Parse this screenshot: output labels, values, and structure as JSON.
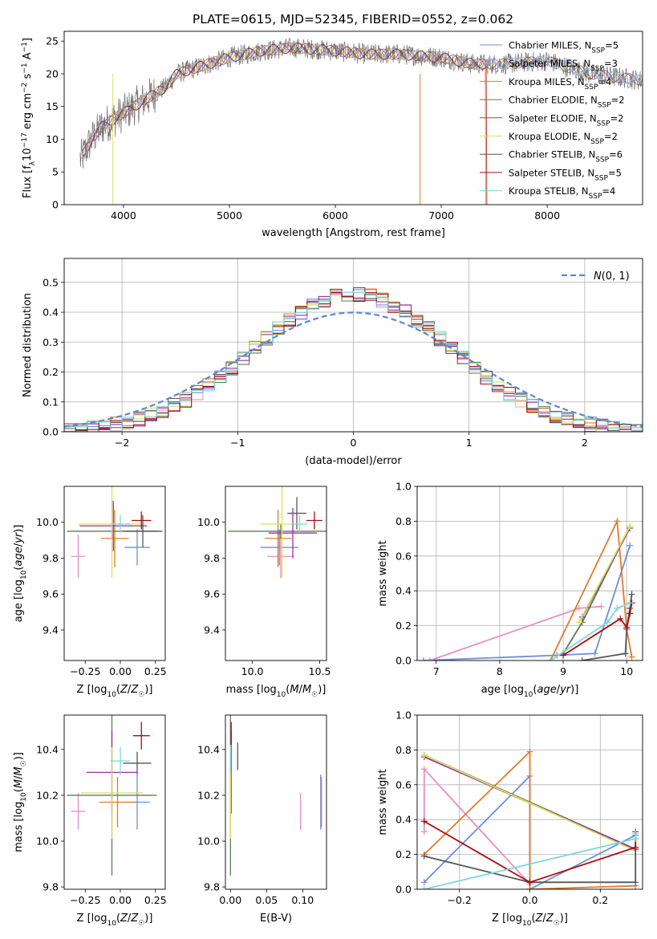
{
  "figure": {
    "title": "PLATE=0615, MJD=52345, FIBERID=0552, z=0.062"
  },
  "series_colors": [
    "#6c8fd8",
    "#e68fbf",
    "#e07b28",
    "#5f7a5a",
    "#9c2fa8",
    "#d7e35a",
    "#555555",
    "#a80d0d",
    "#7fd6dd"
  ],
  "chart_data": [
    {
      "id": "spectrum",
      "type": "line",
      "title": "PLATE=0615, MJD=52345, FIBERID=0552, z=0.062",
      "xlabel": "wavelength [Angstrom, rest frame]",
      "ylabel": "Flux [f_λ10^-17 erg cm^-2 s^-1 A^-1]",
      "xlim": [
        3440,
        8900
      ],
      "ylim": [
        0,
        26.5
      ],
      "xticks": [
        4000,
        5000,
        6000,
        7000,
        8000
      ],
      "yticks": [
        0,
        5,
        10,
        15,
        20,
        25
      ],
      "legend_position": "top-right",
      "legend": [
        "Chabrier MILES, N_SSP=5",
        "Salpeter MILES, N_SSP=3",
        "Kroupa MILES, N_SSP=4",
        "Chabrier ELODIE, N_SSP=2",
        "Salpeter ELODIE, N_SSP=2",
        "Kroupa ELODIE, N_SSP=2",
        "Chabrier STELIB, N_SSP=6",
        "Salpeter STELIB, N_SSP=5",
        "Kroupa STELIB, N_SSP=4"
      ],
      "continuum": {
        "x": [
          3600,
          3700,
          3800,
          3900,
          4000,
          4100,
          4200,
          4300,
          4400,
          4500,
          4700,
          5000,
          5300,
          5600,
          6000,
          6300,
          6600,
          7000,
          7300,
          7600,
          8000,
          8400,
          8900
        ],
        "y": [
          7,
          10,
          12,
          13,
          14,
          15,
          16,
          17,
          18,
          20,
          21,
          22.5,
          23.5,
          24,
          23.5,
          23,
          23,
          22.5,
          21.5,
          21.5,
          22,
          20,
          19
        ]
      }
    },
    {
      "id": "residuals",
      "type": "histogram",
      "xlabel": "(data-model)/error",
      "ylabel": "Normed distribution",
      "xlim": [
        -2.5,
        2.5
      ],
      "ylim": [
        0,
        0.58
      ],
      "xticks": [
        -2,
        -1,
        0,
        1,
        2
      ],
      "yticks": [
        0.0,
        0.1,
        0.2,
        0.3,
        0.4,
        0.5
      ],
      "grid": true,
      "legend_position": "top-right",
      "legend": [
        "N(0,1)"
      ],
      "bin_width": 0.1,
      "envelope_peak": 0.46
    },
    {
      "id": "age-vs-Z",
      "type": "errorbar",
      "xlabel": "Z [log10(Z/Z☉)]",
      "ylabel": "age  [log10(age/yr)]",
      "xlim": [
        -0.4,
        0.32
      ],
      "ylim": [
        9.23,
        10.2
      ],
      "xticks": [
        -0.25,
        0.0,
        0.25
      ],
      "yticks": [
        9.4,
        9.6,
        9.8,
        10.0
      ],
      "points": [
        {
          "x": 0.12,
          "y": 9.86,
          "xerr": 0.09,
          "yerr": 0.1
        },
        {
          "x": -0.3,
          "y": 9.81,
          "xerr": 0.05,
          "yerr": 0.12
        },
        {
          "x": -0.04,
          "y": 9.91,
          "xerr": 0.1,
          "yerr": 0.16
        },
        {
          "x": -0.06,
          "y": 9.95,
          "xerr": 0.32,
          "yerr": 0.04
        },
        {
          "x": -0.05,
          "y": 9.98,
          "xerr": 0.24,
          "yerr": 0.14
        },
        {
          "x": -0.06,
          "y": 9.99,
          "xerr": 0.24,
          "yerr": 0.3
        },
        {
          "x": 0.16,
          "y": 9.95,
          "xerr": 0.14,
          "yerr": 0.09
        },
        {
          "x": 0.15,
          "y": 10.01,
          "xerr": 0.07,
          "yerr": 0.05
        },
        {
          "x": 0.0,
          "y": 9.99,
          "xerr": 0.07,
          "yerr": 0.05
        }
      ]
    },
    {
      "id": "age-vs-mass",
      "type": "errorbar",
      "xlabel": "mass [log10(M/M☉)]",
      "ylabel": "",
      "xlim": [
        9.8,
        10.55
      ],
      "ylim": [
        9.23,
        10.2
      ],
      "xticks": [
        10.0,
        10.5
      ],
      "yticks": [
        9.4,
        9.6,
        9.8,
        10.0
      ],
      "points": [
        {
          "x": 10.2,
          "y": 9.86,
          "xerr": 0.14,
          "yerr": 0.1
        },
        {
          "x": 10.21,
          "y": 9.81,
          "xerr": 0.1,
          "yerr": 0.12
        },
        {
          "x": 10.19,
          "y": 9.91,
          "xerr": 0.1,
          "yerr": 0.16
        },
        {
          "x": 10.21,
          "y": 9.95,
          "xerr": 0.39,
          "yerr": 0.04
        },
        {
          "x": 10.3,
          "y": 9.94,
          "xerr": 0.18,
          "yerr": 0.14
        },
        {
          "x": 10.22,
          "y": 9.99,
          "xerr": 0.16,
          "yerr": 0.3
        },
        {
          "x": 10.33,
          "y": 10.05,
          "xerr": 0.07,
          "yerr": 0.09
        },
        {
          "x": 10.46,
          "y": 10.01,
          "xerr": 0.06,
          "yerr": 0.05
        },
        {
          "x": 10.35,
          "y": 9.99,
          "xerr": 0.06,
          "yerr": 0.05
        }
      ]
    },
    {
      "id": "weight-vs-age",
      "type": "line",
      "xlabel": "age  [log10(age/yr)]",
      "ylabel": "mass weight",
      "xlim": [
        6.7,
        10.25
      ],
      "ylim": [
        0.0,
        1.0
      ],
      "xticks": [
        7,
        8,
        9,
        10
      ],
      "yticks": [
        0.0,
        0.2,
        0.4,
        0.6,
        0.8,
        1.0
      ],
      "grid": true,
      "series": [
        {
          "x": [
            6.8,
            8.9,
            9.5,
            10.05
          ],
          "y": [
            0.0,
            0.03,
            0.04,
            0.66
          ]
        },
        {
          "x": [
            6.9,
            9.25,
            9.6
          ],
          "y": [
            0.0,
            0.3,
            0.31
          ]
        },
        {
          "x": [
            8.8,
            9.85,
            10.0,
            10.08
          ],
          "y": [
            0.0,
            0.8,
            0.18,
            0.02
          ]
        },
        {
          "x": [
            9.0,
            9.3,
            10.05
          ],
          "y": [
            0.04,
            0.22,
            0.77
          ]
        },
        {
          "x": [
            9.3,
            10.05
          ],
          "y": [
            0.25,
            0.76
          ]
        },
        {
          "x": [
            9.25,
            10.05
          ],
          "y": [
            0.22,
            0.77
          ]
        },
        {
          "x": [
            9.3,
            9.98,
            10.0,
            10.05,
            10.08
          ],
          "y": [
            0.0,
            0.04,
            0.18,
            0.3,
            0.38
          ]
        },
        {
          "x": [
            9.0,
            9.9,
            10.0,
            10.05,
            10.08
          ],
          "y": [
            0.03,
            0.24,
            0.19,
            0.27,
            0.33
          ]
        },
        {
          "x": [
            8.8,
            9.7,
            9.85,
            10.05
          ],
          "y": [
            0.0,
            0.22,
            0.3,
            0.33
          ]
        }
      ]
    },
    {
      "id": "mass-vs-Z",
      "type": "errorbar",
      "xlabel": "Z [log10(Z/Z☉)]",
      "ylabel": "mass [log10(M/M☉)]",
      "xlim": [
        -0.4,
        0.32
      ],
      "ylim": [
        9.79,
        10.55
      ],
      "xticks": [
        -0.25,
        0.0,
        0.25
      ],
      "yticks": [
        9.8,
        10.0,
        10.2,
        10.4
      ],
      "points": [
        {
          "x": 0.12,
          "y": 10.17,
          "xerr": 0.09,
          "yerr": 0.12
        },
        {
          "x": -0.3,
          "y": 10.13,
          "xerr": 0.05,
          "yerr": 0.08
        },
        {
          "x": -0.02,
          "y": 10.17,
          "xerr": 0.13,
          "yerr": 0.11
        },
        {
          "x": -0.06,
          "y": 10.2,
          "xerr": 0.32,
          "yerr": 0.35
        },
        {
          "x": -0.06,
          "y": 10.3,
          "xerr": 0.18,
          "yerr": 0.18
        },
        {
          "x": -0.06,
          "y": 10.21,
          "xerr": 0.22,
          "yerr": 0.2
        },
        {
          "x": 0.12,
          "y": 10.34,
          "xerr": 0.1,
          "yerr": 0.05
        },
        {
          "x": 0.15,
          "y": 10.46,
          "xerr": 0.06,
          "yerr": 0.06
        },
        {
          "x": 0.0,
          "y": 10.35,
          "xerr": 0.07,
          "yerr": 0.06
        }
      ]
    },
    {
      "id": "mass-vs-EBV",
      "type": "errorbar",
      "xlabel": "E(B-V)",
      "ylabel": "",
      "xlim": [
        -0.007,
        0.133
      ],
      "ylim": [
        9.79,
        10.55
      ],
      "xticks": [
        0.0,
        0.05,
        0.1
      ],
      "yticks": [
        9.8,
        10.0,
        10.2,
        10.4
      ],
      "points": [
        {
          "x": 0.125,
          "y": 10.17,
          "xerr": 0.0,
          "yerr": 0.12
        },
        {
          "x": 0.097,
          "y": 10.13,
          "xerr": 0.0,
          "yerr": 0.08
        },
        {
          "x": 0.126,
          "y": 10.17,
          "xerr": 0.0,
          "yerr": 0.11
        },
        {
          "x": 0.0,
          "y": 10.2,
          "xerr": 0.0,
          "yerr": 0.35
        },
        {
          "x": 0.001,
          "y": 10.3,
          "xerr": 0.0,
          "yerr": 0.18
        },
        {
          "x": 0.0,
          "y": 10.21,
          "xerr": 0.0,
          "yerr": 0.2
        },
        {
          "x": 0.01,
          "y": 10.37,
          "xerr": 0.0,
          "yerr": 0.06
        },
        {
          "x": 0.001,
          "y": 10.47,
          "xerr": 0.0,
          "yerr": 0.05
        },
        {
          "x": 0.0,
          "y": 10.36,
          "xerr": 0.0,
          "yerr": 0.06
        }
      ]
    },
    {
      "id": "weight-vs-Z",
      "type": "line",
      "xlabel": "Z [log10(Z/Z☉)]",
      "ylabel": "mass weight",
      "xlim": [
        -0.32,
        0.32
      ],
      "ylim": [
        0.0,
        1.0
      ],
      "xticks": [
        -0.2,
        0.0,
        0.2
      ],
      "yticks": [
        0.0,
        0.2,
        0.4,
        0.6,
        0.8,
        1.0
      ],
      "grid": true,
      "series": [
        {
          "x": [
            -0.3,
            0.0,
            0.0,
            0.3
          ],
          "y": [
            0.04,
            0.65,
            0.0,
            0.31
          ]
        },
        {
          "x": [
            -0.3,
            -0.3,
            0.0,
            0.0
          ],
          "y": [
            0.33,
            0.69,
            0.03,
            0.0
          ]
        },
        {
          "x": [
            -0.3,
            0.0,
            0.0,
            0.3
          ],
          "y": [
            0.2,
            0.79,
            0.0,
            0.02
          ]
        },
        {
          "x": [
            -0.3,
            0.3
          ],
          "y": [
            0.77,
            0.23
          ]
        },
        {
          "x": [
            -0.3,
            0.3
          ],
          "y": [
            0.76,
            0.23
          ]
        },
        {
          "x": [
            -0.3,
            0.3
          ],
          "y": [
            0.77,
            0.22
          ]
        },
        {
          "x": [
            -0.3,
            0.0,
            0.3,
            0.3
          ],
          "y": [
            0.19,
            0.04,
            0.04,
            0.33
          ]
        },
        {
          "x": [
            -0.3,
            0.0,
            0.3,
            0.3
          ],
          "y": [
            0.39,
            0.04,
            0.24,
            0.29
          ]
        },
        {
          "x": [
            -0.3,
            0.3,
            0.3
          ],
          "y": [
            0.0,
            0.29,
            0.32
          ]
        }
      ]
    }
  ]
}
